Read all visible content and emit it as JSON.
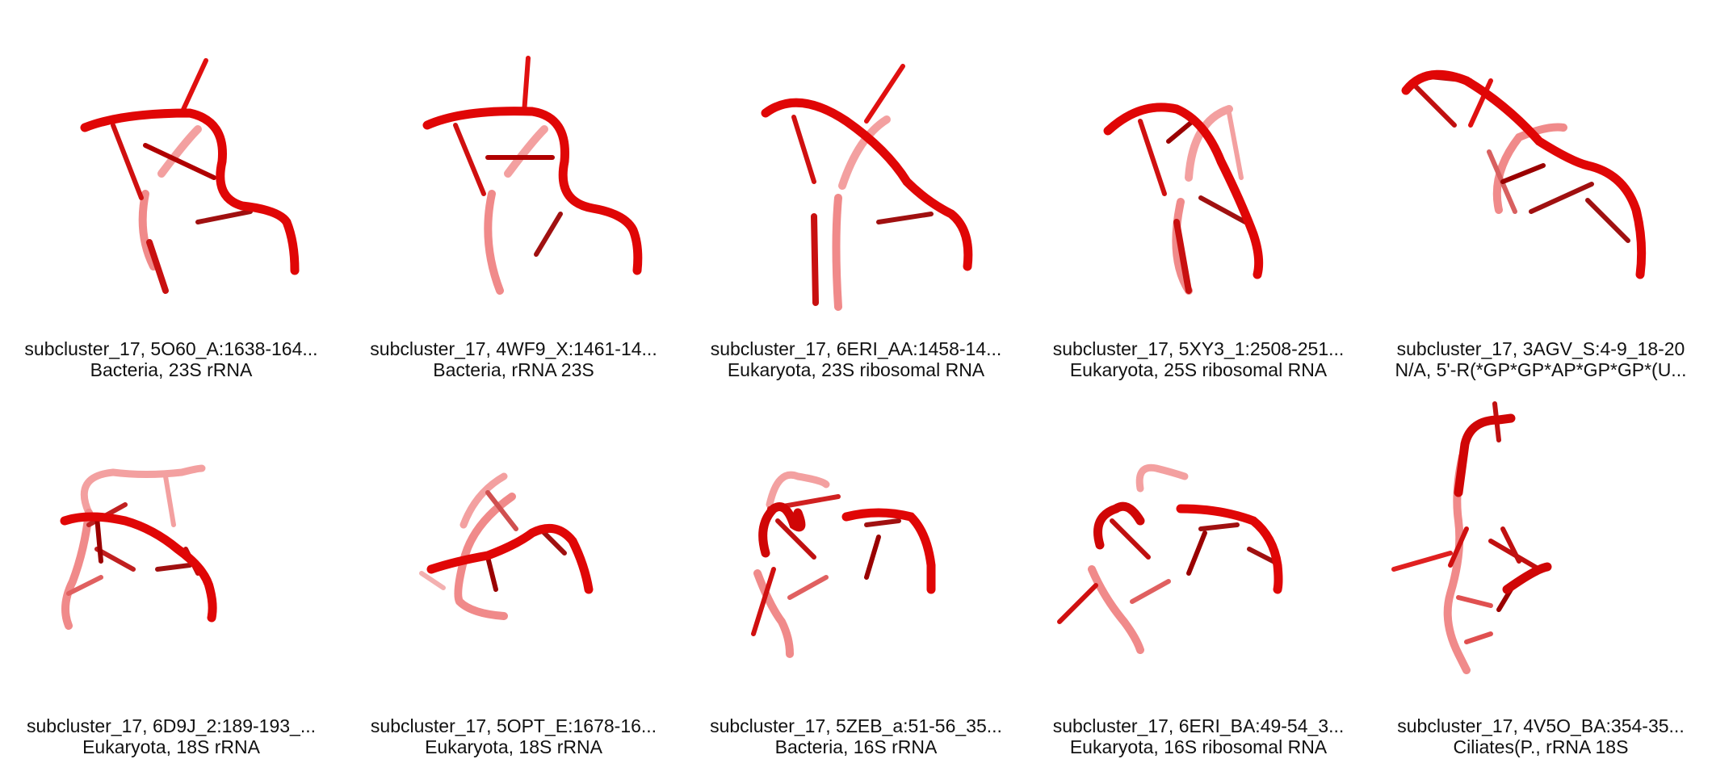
{
  "structures": [
    {
      "line1": "subcluster_17, 5O60_A:1638-164...",
      "line2": "Bacteria, 23S rRNA",
      "icon": "rna-backbone-icon"
    },
    {
      "line1": "subcluster_17, 4WF9_X:1461-14...",
      "line2": "Bacteria, rRNA 23S",
      "icon": "rna-backbone-icon"
    },
    {
      "line1": "subcluster_17, 6ERI_AA:1458-14...",
      "line2": "Eukaryota, 23S ribosomal RNA",
      "icon": "rna-backbone-icon"
    },
    {
      "line1": "subcluster_17, 5XY3_1:2508-251...",
      "line2": "Eukaryota, 25S ribosomal RNA",
      "icon": "rna-backbone-icon"
    },
    {
      "line1": "subcluster_17, 3AGV_S:4-9_18-20",
      "line2": "N/A, 5'-R(*GP*GP*AP*GP*GP*(U...",
      "icon": "rna-backbone-icon"
    },
    {
      "line1": "subcluster_17, 6D9J_2:189-193_...",
      "line2": "Eukaryota, 18S rRNA",
      "icon": "rna-backbone-icon"
    },
    {
      "line1": "subcluster_17, 5OPT_E:1678-16...",
      "line2": "Eukaryota, 18S rRNA",
      "icon": "rna-backbone-icon"
    },
    {
      "line1": "subcluster_17, 5ZEB_a:51-56_35...",
      "line2": "Bacteria, 16S rRNA",
      "icon": "rna-backbone-icon"
    },
    {
      "line1": "subcluster_17, 6ERI_BA:49-54_3...",
      "line2": "Eukaryota, 16S ribosomal RNA",
      "icon": "rna-backbone-icon"
    },
    {
      "line1": "subcluster_17, 4V5O_BA:354-35...",
      "line2": "Ciliates(P., rRNA 18S",
      "icon": "rna-backbone-icon"
    }
  ],
  "colors": {
    "dark_red": "#c80000",
    "red": "#e01010",
    "light_red": "#f08080",
    "caption_text": "#111111",
    "background": "#ffffff"
  }
}
